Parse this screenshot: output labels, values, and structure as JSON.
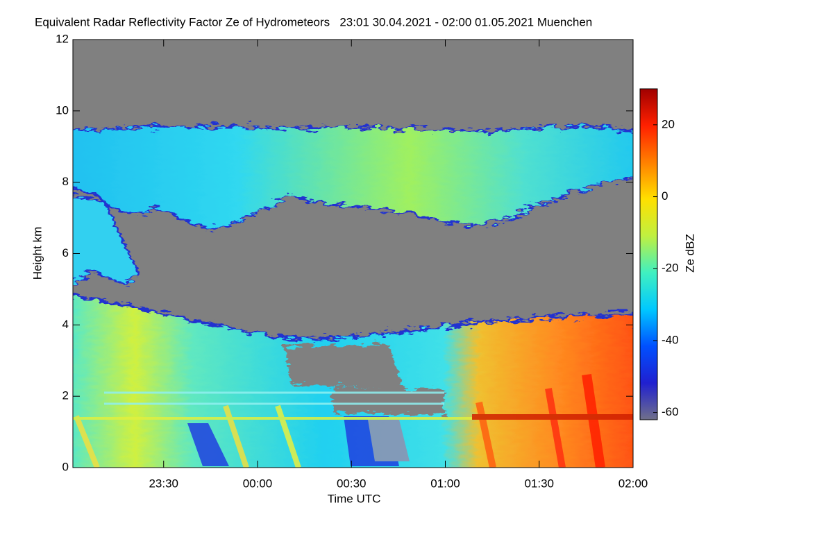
{
  "chart_data": {
    "type": "heatmap",
    "title": "Equivalent Radar Reflectivity Factor Ze of Hydrometeors   23:01 30.04.2021 - 02:00 01.05.2021 Muenchen",
    "x_label": "Time UTC",
    "y_label": "Height km",
    "xlim": [
      "23:01",
      "02:00"
    ],
    "xticks": [
      "23:30",
      "00:00",
      "00:30",
      "01:00",
      "01:30",
      "02:00"
    ],
    "ylim": [
      0,
      12
    ],
    "yticks": [
      0,
      2,
      4,
      6,
      8,
      10,
      12
    ],
    "colorbar": {
      "label": "Ze dBZ",
      "lim": [
        -62,
        30
      ],
      "ticks": [
        -60,
        -40,
        -20,
        0,
        20
      ],
      "colormap": [
        "#70708a",
        "#2020d0",
        "#0050ff",
        "#00c8ff",
        "#40f0c0",
        "#c0f040",
        "#ffe000",
        "#ff8000",
        "#ff2000",
        "#a00000"
      ]
    }
  }
}
